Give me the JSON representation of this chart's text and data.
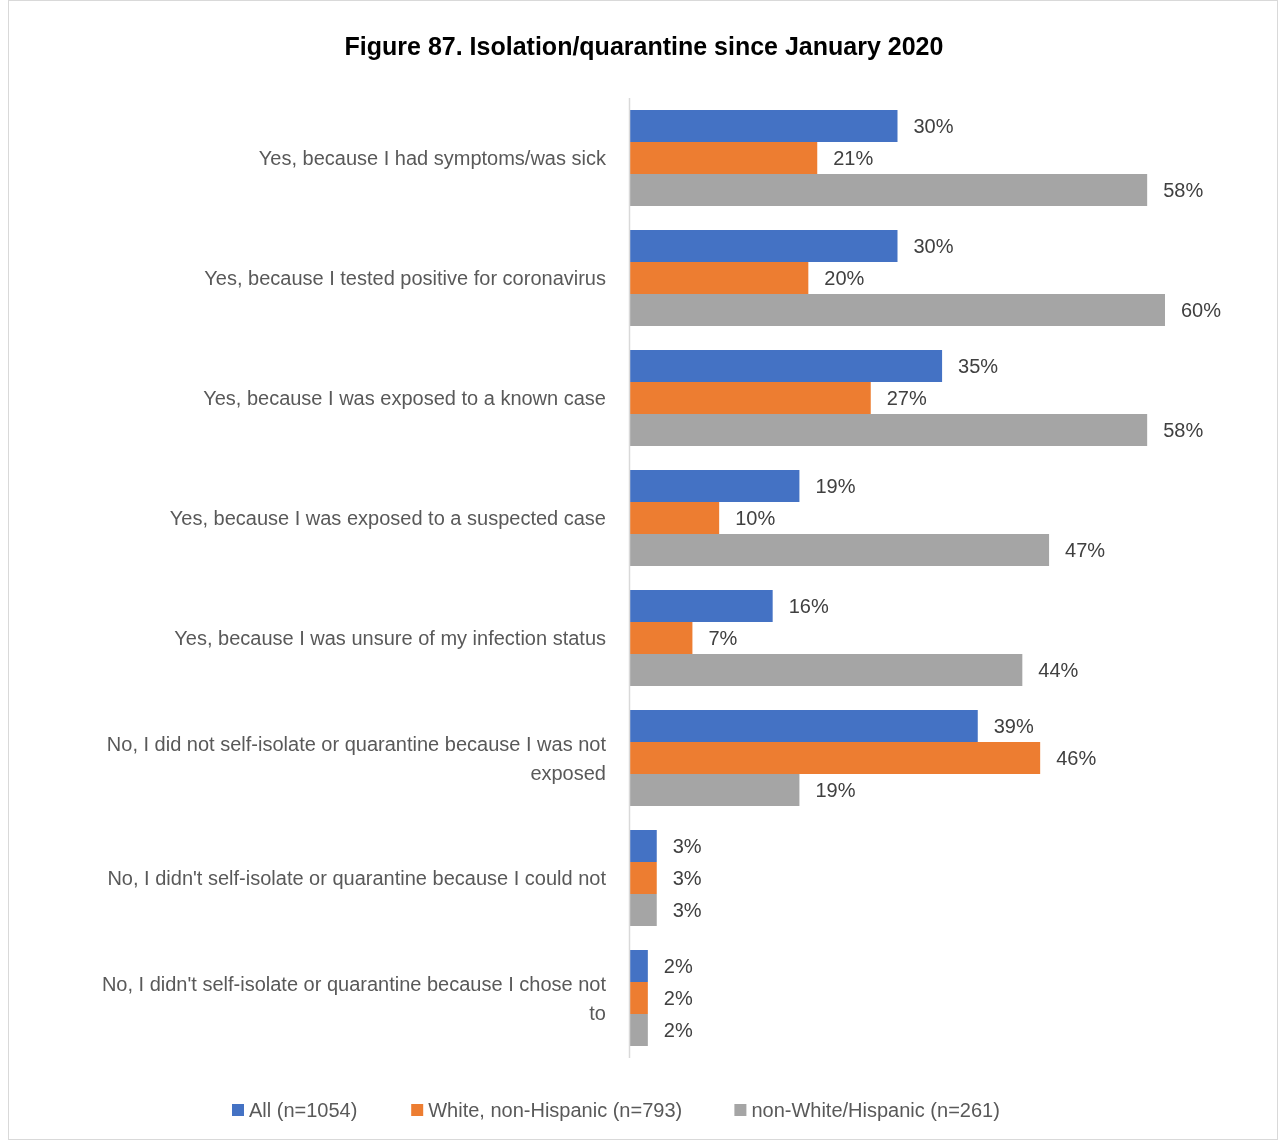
{
  "chart_data": {
    "type": "bar",
    "orientation": "horizontal",
    "title": "Figure 87. Isolation/quarantine since January 2020",
    "categories": [
      "Yes, because I had symptoms/was sick",
      "Yes, because I tested positive for coronavirus",
      "Yes, because I was exposed to a known case",
      "Yes, because I was exposed to a suspected case",
      "Yes, because I was unsure of my infection status",
      "No, I did not self-isolate or quarantine because I was not exposed",
      "No, I didn't self-isolate or quarantine because I could not",
      "No, I didn't self-isolate or quarantine because I chose not to"
    ],
    "series": [
      {
        "name": "All (n=1054)",
        "color": "#4472c4",
        "values": [
          30,
          30,
          35,
          19,
          16,
          39,
          3,
          2
        ],
        "value_labels": [
          "30%",
          "30%",
          "35%",
          "19%",
          "16%",
          "39%",
          "3%",
          "2%"
        ]
      },
      {
        "name": "White, non-Hispanic (n=793)",
        "color": "#ed7d31",
        "values": [
          21,
          20,
          27,
          10,
          7,
          46,
          3,
          2
        ],
        "value_labels": [
          "21%",
          "20%",
          "27%",
          "10%",
          "7%",
          "46%",
          "3%",
          "2%"
        ]
      },
      {
        "name": "non-White/Hispanic (n=261)",
        "color": "#a5a5a5",
        "values": [
          58,
          60,
          58,
          47,
          44,
          19,
          3,
          2
        ],
        "value_labels": [
          "58%",
          "60%",
          "58%",
          "47%",
          "44%",
          "19%",
          "3%",
          "2%"
        ]
      }
    ],
    "legend": "bottom",
    "grid": false
  }
}
